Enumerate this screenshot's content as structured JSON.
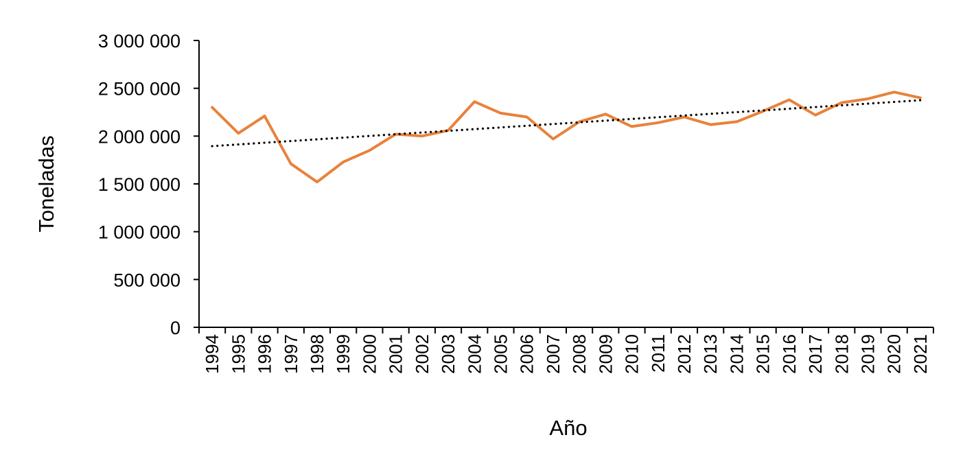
{
  "chart_data": {
    "type": "line",
    "title": "",
    "xlabel": "Año",
    "ylabel": "Toneladas",
    "ylim": [
      0,
      3000000
    ],
    "y_ticks": [
      0,
      500000,
      1000000,
      1500000,
      2000000,
      2500000,
      3000000
    ],
    "y_tick_labels": [
      "0",
      "500 000",
      "1 000 000",
      "1 500 000",
      "2 000 000",
      "2 500 000",
      "3 000 000"
    ],
    "categories": [
      "1994",
      "1995",
      "1996",
      "1997",
      "1998",
      "1999",
      "2000",
      "2001",
      "2002",
      "2003",
      "2004",
      "2005",
      "2006",
      "2007",
      "2008",
      "2009",
      "2010",
      "2011",
      "2012",
      "2013",
      "2014",
      "2015",
      "2016",
      "2017",
      "2018",
      "2019",
      "2020",
      "2021"
    ],
    "series": [
      {
        "name": "Toneladas",
        "color": "#E8823A",
        "values": [
          2300000,
          2030000,
          2210000,
          1710000,
          1520000,
          1730000,
          1850000,
          2020000,
          2000000,
          2060000,
          2360000,
          2240000,
          2200000,
          1970000,
          2150000,
          2230000,
          2100000,
          2140000,
          2200000,
          2120000,
          2150000,
          2260000,
          2380000,
          2220000,
          2350000,
          2390000,
          2460000,
          2400000
        ]
      }
    ],
    "trendline": {
      "type": "linear",
      "style": "dotted",
      "color": "#000000",
      "start": 1895000,
      "end": 2375000
    },
    "grid": false,
    "legend": "none"
  }
}
